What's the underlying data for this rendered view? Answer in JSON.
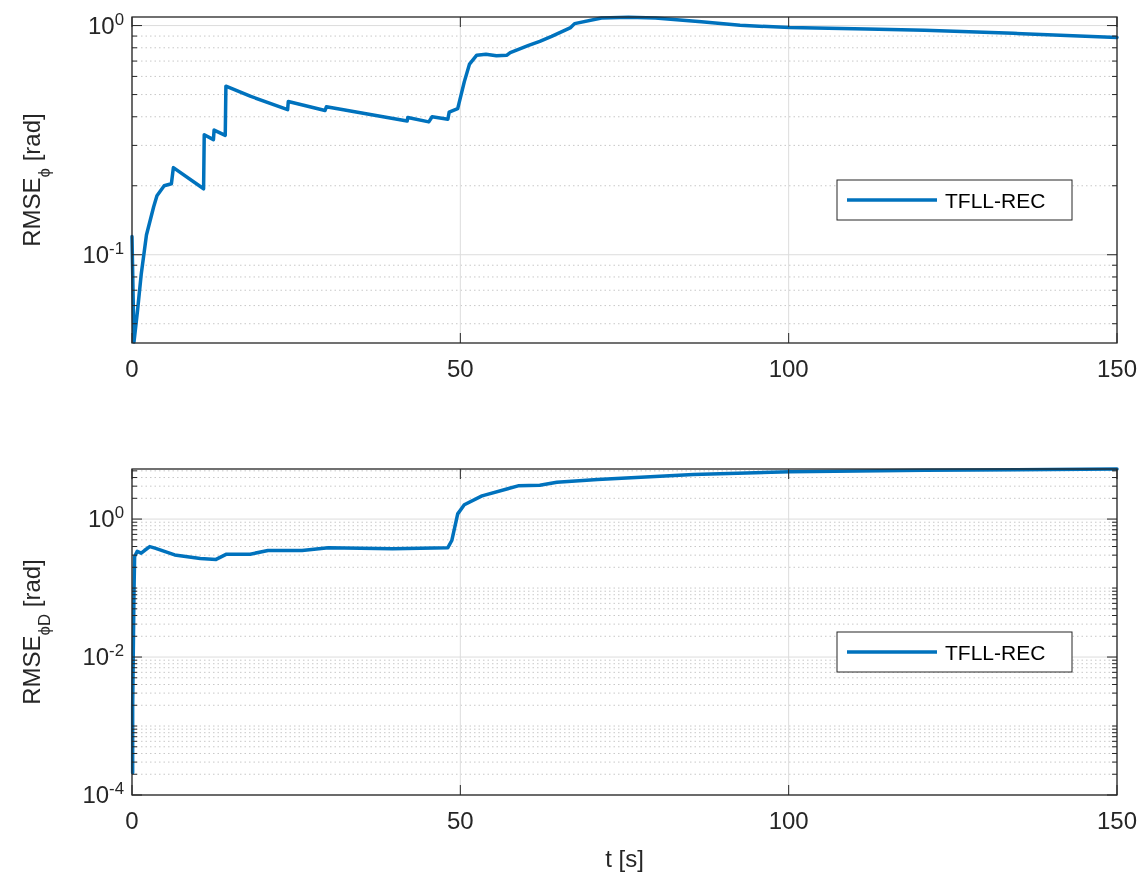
{
  "chart_data": [
    {
      "type": "line",
      "ylabel": "RMSE$_{ϕ}$  [rad]",
      "log": "y",
      "grid": true,
      "legend": "right",
      "xlim": [
        0,
        150
      ],
      "xticks": [
        0,
        50,
        100,
        150
      ],
      "ylim": [
        0.0412,
        1.09
      ],
      "yticks": [
        {
          "value": 0.05,
          "label": null
        },
        {
          "value": 0.06,
          "label": null
        },
        {
          "value": 0.07,
          "label": null
        },
        {
          "value": 0.08,
          "label": null
        },
        {
          "value": 0.09,
          "label": null
        },
        {
          "value": 0.1,
          "label": "10$^{-1}$"
        },
        {
          "value": 0.2,
          "label": null
        },
        {
          "value": 0.3,
          "label": null
        },
        {
          "value": 0.4,
          "label": null
        },
        {
          "value": 0.5,
          "label": null
        },
        {
          "value": 0.6,
          "label": null
        },
        {
          "value": 0.7,
          "label": null
        },
        {
          "value": 0.8,
          "label": null
        },
        {
          "value": 0.9,
          "label": null
        },
        {
          "value": 1,
          "label": "10$^{0}$"
        }
      ],
      "series": [
        {
          "name": "TFLL-REC",
          "color": "#0072bd",
          "x": [
            0,
            0.3,
            0.84,
            1.4,
            2.2,
            3.3,
            3.8,
            4.9,
            6.0,
            6.3,
            10.9,
            11.0,
            12.4,
            12.5,
            14.2,
            14.3,
            18,
            23.7,
            23.8,
            29.4,
            29.6,
            41.9,
            42,
            45.2,
            45.7,
            48.1,
            48.3,
            49.6,
            50.6,
            51.4,
            52.5,
            53.9,
            55.5,
            57.1,
            57.6,
            60.4,
            62.1,
            63.9,
            66.8,
            67.4,
            71.5,
            75.6,
            79.7,
            86.7,
            92.6,
            100.2,
            111.9,
            120.7,
            134.2,
            150
          ],
          "values": [
            0.12,
            0.0416,
            0.057,
            0.082,
            0.122,
            0.162,
            0.181,
            0.2,
            0.204,
            0.24,
            0.194,
            0.334,
            0.318,
            0.35,
            0.332,
            0.544,
            0.492,
            0.43,
            0.466,
            0.426,
            0.442,
            0.383,
            0.397,
            0.38,
            0.4,
            0.39,
            0.419,
            0.434,
            0.568,
            0.679,
            0.743,
            0.75,
            0.738,
            0.743,
            0.762,
            0.819,
            0.853,
            0.897,
            0.98,
            1.02,
            1.079,
            1.088,
            1.079,
            1.039,
            1.003,
            0.98,
            0.966,
            0.954,
            0.925,
            0.887
          ]
        }
      ]
    },
    {
      "type": "line",
      "xlabel": "t [s]",
      "ylabel": "RMSE$_{ϕD}$ [rad]",
      "log": "y",
      "grid": true,
      "legend": "right",
      "xlim": [
        0,
        150
      ],
      "xticks": [
        0,
        50,
        100,
        150
      ],
      "ylim": [
        0.0001,
        5.32
      ],
      "yticks": [
        {
          "value": 0.0001,
          "label": "10$^{-4}$"
        },
        {
          "value": 0.0002,
          "label": null
        },
        {
          "value": 0.0003,
          "label": null
        },
        {
          "value": 0.0004,
          "label": null
        },
        {
          "value": 0.0005,
          "label": null
        },
        {
          "value": 0.0006,
          "label": null
        },
        {
          "value": 0.0007,
          "label": null
        },
        {
          "value": 0.0008,
          "label": null
        },
        {
          "value": 0.0009,
          "label": null
        },
        {
          "value": 0.001,
          "label": null
        },
        {
          "value": 0.002,
          "label": null
        },
        {
          "value": 0.003,
          "label": null
        },
        {
          "value": 0.004,
          "label": null
        },
        {
          "value": 0.005,
          "label": null
        },
        {
          "value": 0.006,
          "label": null
        },
        {
          "value": 0.007,
          "label": null
        },
        {
          "value": 0.008,
          "label": null
        },
        {
          "value": 0.009,
          "label": null
        },
        {
          "value": 0.01,
          "label": "10$^{-2}$"
        },
        {
          "value": 0.02,
          "label": null
        },
        {
          "value": 0.03,
          "label": null
        },
        {
          "value": 0.04,
          "label": null
        },
        {
          "value": 0.05,
          "label": null
        },
        {
          "value": 0.06,
          "label": null
        },
        {
          "value": 0.07,
          "label": null
        },
        {
          "value": 0.08,
          "label": null
        },
        {
          "value": 0.09,
          "label": null
        },
        {
          "value": 0.1,
          "label": null
        },
        {
          "value": 0.2,
          "label": null
        },
        {
          "value": 0.3,
          "label": null
        },
        {
          "value": 0.4,
          "label": null
        },
        {
          "value": 0.5,
          "label": null
        },
        {
          "value": 0.6,
          "label": null
        },
        {
          "value": 0.7,
          "label": null
        },
        {
          "value": 0.8,
          "label": null
        },
        {
          "value": 0.9,
          "label": null
        },
        {
          "value": 1,
          "label": "10$^{0}$"
        },
        {
          "value": 2,
          "label": null
        },
        {
          "value": 3,
          "label": null
        },
        {
          "value": 4,
          "label": null
        },
        {
          "value": 5,
          "label": null
        }
      ],
      "series": [
        {
          "name": "TFLL-REC",
          "color": "#0072bd",
          "x": [
            0.1,
            0.1,
            0.3,
            0.4,
            0.8,
            1.4,
            1.9,
            2.7,
            3.5,
            6.5,
            10.4,
            12.8,
            14.4,
            18,
            20.7,
            25.9,
            29.9,
            39.7,
            48.1,
            48.7,
            49.6,
            50.6,
            53.3,
            58.8,
            62.1,
            64.7,
            70.9,
            85.5,
            100.2,
            120.7,
            150
          ],
          "values": [
            0.00021,
            0.0019,
            0.086,
            0.286,
            0.341,
            0.321,
            0.35,
            0.399,
            0.38,
            0.302,
            0.269,
            0.26,
            0.31,
            0.31,
            0.35,
            0.35,
            0.385,
            0.37,
            0.385,
            0.489,
            1.19,
            1.61,
            2.17,
            3.03,
            3.1,
            3.41,
            3.76,
            4.44,
            4.86,
            5.1,
            5.3
          ]
        }
      ]
    }
  ]
}
